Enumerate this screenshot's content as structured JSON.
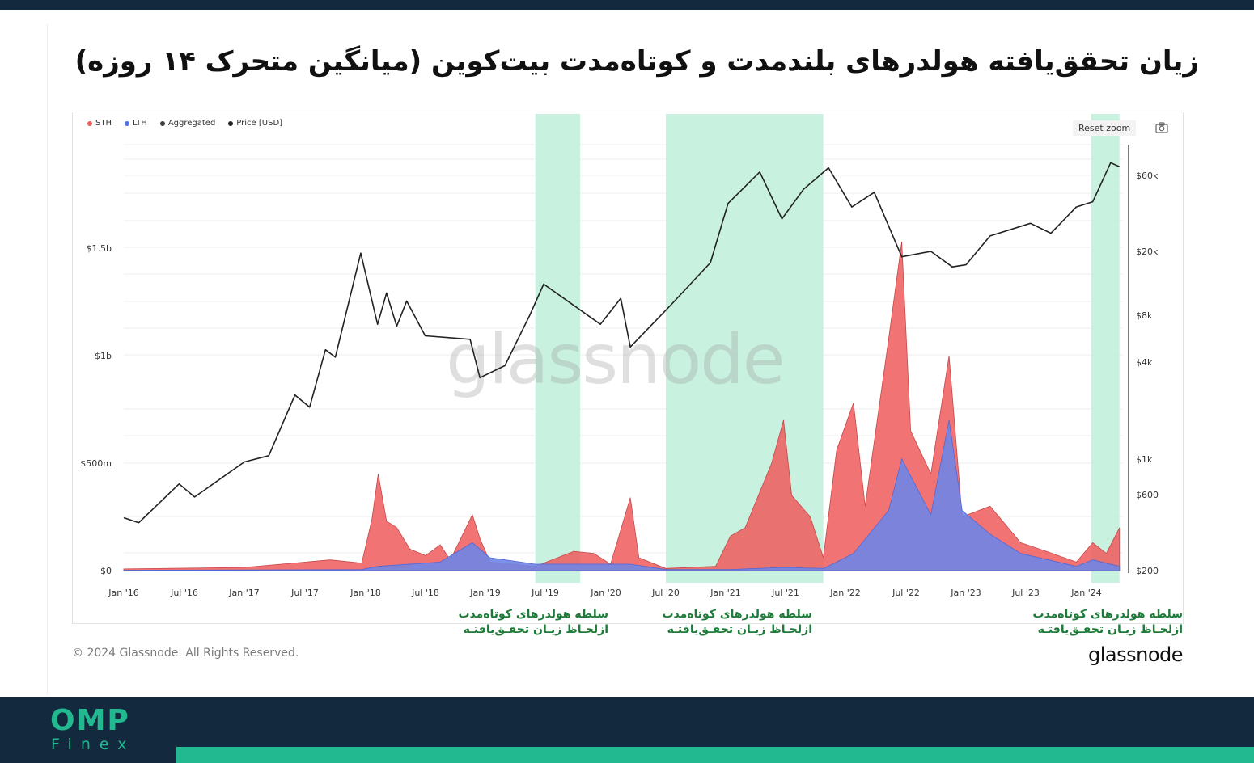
{
  "header": {
    "title": "زیان تحقق‌یافته هولدرهای بلندمدت و کوتاه‌مدت بیت‌کوین (میانگین متحرک ۱۴ روزه)"
  },
  "chart_controls": {
    "reset_zoom_label": "Reset zoom",
    "camera_icon": "camera-icon"
  },
  "colors": {
    "sth": "#ee5b5b",
    "lth": "#6f85e6",
    "aggregated": "#3a3a3a",
    "price": "#222222",
    "highlight": "#bfeedb",
    "caption_text": "#1f7a3a",
    "footer_bg": "#132a3e",
    "footer_accent": "#22b890"
  },
  "chart_data": {
    "type": "area",
    "title": "",
    "legend": {
      "placement": "top-left",
      "entries": [
        "STH",
        "LTH",
        "Aggregated",
        "Price [USD]"
      ]
    },
    "x_ticks": [
      "Jan '16",
      "Jul '16",
      "Jan '17",
      "Jul '17",
      "Jan '18",
      "Jul '18",
      "Jan '19",
      "Jul '19",
      "Jan '20",
      "Jul '20",
      "Jan '21",
      "Jul '21",
      "Jan '22",
      "Jul '22",
      "Jan '23",
      "Jul '23",
      "Jan '24"
    ],
    "x_range": [
      "2016-01-01",
      "2024-04-15"
    ],
    "y_left": {
      "ticks": [
        "$0",
        "$500m",
        "$1b",
        "$1.5b"
      ],
      "tick_values": [
        0,
        500000000,
        1000000000,
        1500000000
      ],
      "range": [
        0,
        2000000000
      ]
    },
    "y_right": {
      "scale": "log",
      "ticks": [
        "$200",
        "$600",
        "$1k",
        "$4k",
        "$8k",
        "$20k",
        "$60k"
      ],
      "tick_values": [
        200,
        600,
        1000,
        4000,
        8000,
        20000,
        60000
      ],
      "range": [
        200,
        100000
      ]
    },
    "grid": true,
    "highlight_periods": [
      {
        "start": "2019-06-01",
        "end": "2019-10-15"
      },
      {
        "start": "2020-07-01",
        "end": "2021-10-25"
      },
      {
        "start": "2024-01-15",
        "end": "2024-04-10"
      }
    ],
    "series": [
      {
        "name": "STH",
        "color": "#ee5b5b",
        "points": [
          [
            "2016-01-01",
            8000000.0
          ],
          [
            "2017-01-01",
            15000000.0
          ],
          [
            "2017-09-15",
            50000000.0
          ],
          [
            "2017-12-20",
            35000000.0
          ],
          [
            "2018-01-20",
            240000000.0
          ],
          [
            "2018-02-08",
            450000000.0
          ],
          [
            "2018-03-05",
            230000000.0
          ],
          [
            "2018-04-05",
            200000000.0
          ],
          [
            "2018-05-15",
            100000000.0
          ],
          [
            "2018-07-01",
            70000000.0
          ],
          [
            "2018-08-15",
            120000000.0
          ],
          [
            "2018-09-15",
            50000000.0
          ],
          [
            "2018-11-22",
            260000000.0
          ],
          [
            "2018-12-15",
            150000000.0
          ],
          [
            "2019-01-15",
            40000000.0
          ],
          [
            "2019-06-01",
            20000000.0
          ],
          [
            "2019-09-25",
            90000000.0
          ],
          [
            "2019-11-25",
            80000000.0
          ],
          [
            "2020-01-15",
            30000000.0
          ],
          [
            "2020-03-15",
            340000000.0
          ],
          [
            "2020-04-10",
            60000000.0
          ],
          [
            "2020-07-01",
            10000000.0
          ],
          [
            "2020-12-01",
            20000000.0
          ],
          [
            "2021-01-15",
            160000000.0
          ],
          [
            "2021-03-01",
            200000000.0
          ],
          [
            "2021-05-20",
            500000000.0
          ],
          [
            "2021-06-25",
            700000000.0
          ],
          [
            "2021-07-20",
            350000000.0
          ],
          [
            "2021-09-15",
            250000000.0
          ],
          [
            "2021-10-25",
            60000000.0
          ],
          [
            "2021-12-05",
            560000000.0
          ],
          [
            "2022-01-25",
            780000000.0
          ],
          [
            "2022-03-01",
            300000000.0
          ],
          [
            "2022-05-10",
            1080000000.0
          ],
          [
            "2022-06-18",
            1530000000.0
          ],
          [
            "2022-07-15",
            650000000.0
          ],
          [
            "2022-09-15",
            450000000.0
          ],
          [
            "2022-11-10",
            1000000000.0
          ],
          [
            "2022-12-20",
            250000000.0
          ],
          [
            "2023-03-15",
            300000000.0
          ],
          [
            "2023-06-15",
            130000000.0
          ],
          [
            "2023-09-01",
            90000000.0
          ],
          [
            "2023-12-01",
            40000000.0
          ],
          [
            "2024-01-20",
            130000000.0
          ],
          [
            "2024-03-01",
            80000000.0
          ],
          [
            "2024-04-10",
            200000000.0
          ]
        ]
      },
      {
        "name": "LTH",
        "color": "#6f85e6",
        "points": [
          [
            "2016-01-01",
            2000000.0
          ],
          [
            "2017-01-01",
            3000000.0
          ],
          [
            "2017-12-20",
            5000000.0
          ],
          [
            "2018-02-08",
            20000000.0
          ],
          [
            "2018-08-15",
            40000000.0
          ],
          [
            "2018-11-22",
            130000000.0
          ],
          [
            "2019-01-15",
            60000000.0
          ],
          [
            "2019-06-01",
            30000000.0
          ],
          [
            "2020-03-15",
            30000000.0
          ],
          [
            "2020-07-01",
            5000000.0
          ],
          [
            "2021-01-15",
            5000000.0
          ],
          [
            "2021-06-25",
            15000000.0
          ],
          [
            "2021-10-25",
            10000000.0
          ],
          [
            "2021-12-05",
            40000000.0
          ],
          [
            "2022-01-25",
            80000000.0
          ],
          [
            "2022-05-10",
            280000000.0
          ],
          [
            "2022-06-18",
            520000000.0
          ],
          [
            "2022-09-15",
            260000000.0
          ],
          [
            "2022-11-10",
            700000000.0
          ],
          [
            "2022-12-20",
            280000000.0
          ],
          [
            "2023-03-15",
            170000000.0
          ],
          [
            "2023-06-15",
            80000000.0
          ],
          [
            "2023-12-01",
            20000000.0
          ],
          [
            "2024-01-20",
            50000000.0
          ],
          [
            "2024-04-10",
            20000000.0
          ]
        ]
      },
      {
        "name": "Price [USD]",
        "color": "#222222",
        "points": [
          [
            "2016-01-01",
            430
          ],
          [
            "2016-02-15",
            400
          ],
          [
            "2016-06-15",
            700
          ],
          [
            "2016-08-01",
            580
          ],
          [
            "2017-01-01",
            960
          ],
          [
            "2017-03-15",
            1050
          ],
          [
            "2017-06-01",
            2500
          ],
          [
            "2017-07-15",
            2100
          ],
          [
            "2017-09-01",
            4800
          ],
          [
            "2017-10-01",
            4300
          ],
          [
            "2017-12-17",
            19500
          ],
          [
            "2018-02-06",
            7000
          ],
          [
            "2018-03-05",
            11000
          ],
          [
            "2018-04-05",
            6800
          ],
          [
            "2018-05-05",
            9800
          ],
          [
            "2018-06-30",
            5900
          ],
          [
            "2018-11-15",
            5600
          ],
          [
            "2018-12-15",
            3200
          ],
          [
            "2019-03-01",
            3800
          ],
          [
            "2019-05-15",
            8000
          ],
          [
            "2019-06-26",
            12500
          ],
          [
            "2019-09-01",
            10000
          ],
          [
            "2019-12-15",
            7000
          ],
          [
            "2020-02-15",
            10200
          ],
          [
            "2020-03-15",
            5000
          ],
          [
            "2020-07-15",
            9200
          ],
          [
            "2020-11-15",
            17000
          ],
          [
            "2021-01-08",
            40000
          ],
          [
            "2021-04-14",
            63000
          ],
          [
            "2021-06-20",
            32000
          ],
          [
            "2021-08-25",
            49000
          ],
          [
            "2021-11-10",
            67000
          ],
          [
            "2022-01-20",
            38000
          ],
          [
            "2022-03-28",
            47000
          ],
          [
            "2022-06-18",
            18500
          ],
          [
            "2022-09-15",
            20000
          ],
          [
            "2022-11-20",
            16000
          ],
          [
            "2023-01-01",
            16500
          ],
          [
            "2023-03-15",
            25000
          ],
          [
            "2023-07-15",
            30000
          ],
          [
            "2023-09-15",
            26000
          ],
          [
            "2023-12-01",
            38000
          ],
          [
            "2024-01-20",
            41000
          ],
          [
            "2024-03-14",
            72000
          ],
          [
            "2024-04-10",
            68000
          ]
        ]
      }
    ]
  },
  "annotations": [
    {
      "line1": "سلطه هولدرهای کوتاه‌مدت",
      "line2": "ازلحـاظ زیـان تحقـق‌یافتـه"
    },
    {
      "line1": "سلطه هولدرهای کوتاه‌مدت",
      "line2": "ازلحـاظ زیـان تحقـق‌یافتـه"
    },
    {
      "line1": "سلطه هولدرهای کوتاه‌مدت",
      "line2": "ازلحـاظ زیـان تحقـق‌یافتـه"
    }
  ],
  "watermark": "glassnode",
  "footer_chart": {
    "copyright": "© 2024 Glassnode. All Rights Reserved.",
    "brand": "glassnode"
  },
  "footer": {
    "logo_top": "OMP",
    "logo_bottom": "Finex"
  }
}
